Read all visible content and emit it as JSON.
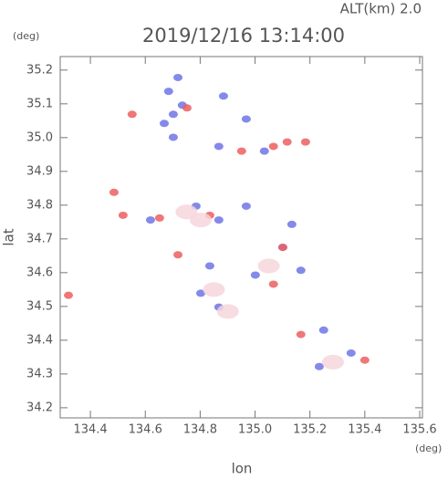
{
  "chart_data": {
    "type": "scatter",
    "title": "2019/12/16 13:14:00",
    "annotation": "ALT(km) 2.0",
    "xlabel": "lon",
    "ylabel": "lat",
    "xunit": "(deg)",
    "yunit": "(deg)",
    "xlim": [
      134.29,
      135.61
    ],
    "ylim": [
      34.17,
      35.24
    ],
    "xticks": [
      134.4,
      134.6,
      134.8,
      {
        "value": 135,
        "label": "135.0"
      },
      135.2,
      135.4,
      135.6
    ],
    "yticks": [
      34.2,
      34.3,
      34.4,
      34.5,
      34.6,
      34.7,
      34.8,
      34.9,
      {
        "value": 35,
        "label": "35.0"
      },
      35.1,
      35.2
    ],
    "series": [
      {
        "color": "#6f74e6",
        "x": [
          134.685,
          134.702,
          134.735,
          134.885,
          134.968,
          134.669,
          134.702,
          134.868,
          135.034,
          134.968,
          134.785,
          134.868,
          134.835,
          135.001,
          135.101,
          135.134,
          134.802,
          134.868,
          135.25,
          135.35,
          135.234,
          134.619,
          135.167,
          134.719
        ],
        "y": [
          35.137,
          35.069,
          35.096,
          35.123,
          35.055,
          35.042,
          35.001,
          34.974,
          34.96,
          34.797,
          34.797,
          34.756,
          34.62,
          34.593,
          34.675,
          34.743,
          34.539,
          34.498,
          34.43,
          34.362,
          34.322,
          34.756,
          34.607,
          35.178
        ]
      },
      {
        "color": "#ec5f5f",
        "x": [
          134.752,
          135.067,
          135.117,
          135.184,
          134.835,
          134.652,
          134.519,
          134.486,
          134.719,
          135.067,
          135.4,
          135.167,
          134.32,
          135.101,
          134.951,
          134.552
        ],
        "y": [
          35.088,
          34.974,
          34.987,
          34.987,
          34.77,
          34.762,
          34.77,
          34.838,
          34.653,
          34.566,
          34.341,
          34.417,
          34.533,
          34.675,
          34.96,
          35.069
        ]
      },
      {
        "color": "#f6d6dc",
        "x": [
          134.901,
          135.284,
          134.802,
          134.85,
          135.05,
          134.75
        ],
        "y": [
          34.485,
          34.335,
          34.756,
          34.55,
          34.62,
          34.78
        ]
      }
    ]
  }
}
